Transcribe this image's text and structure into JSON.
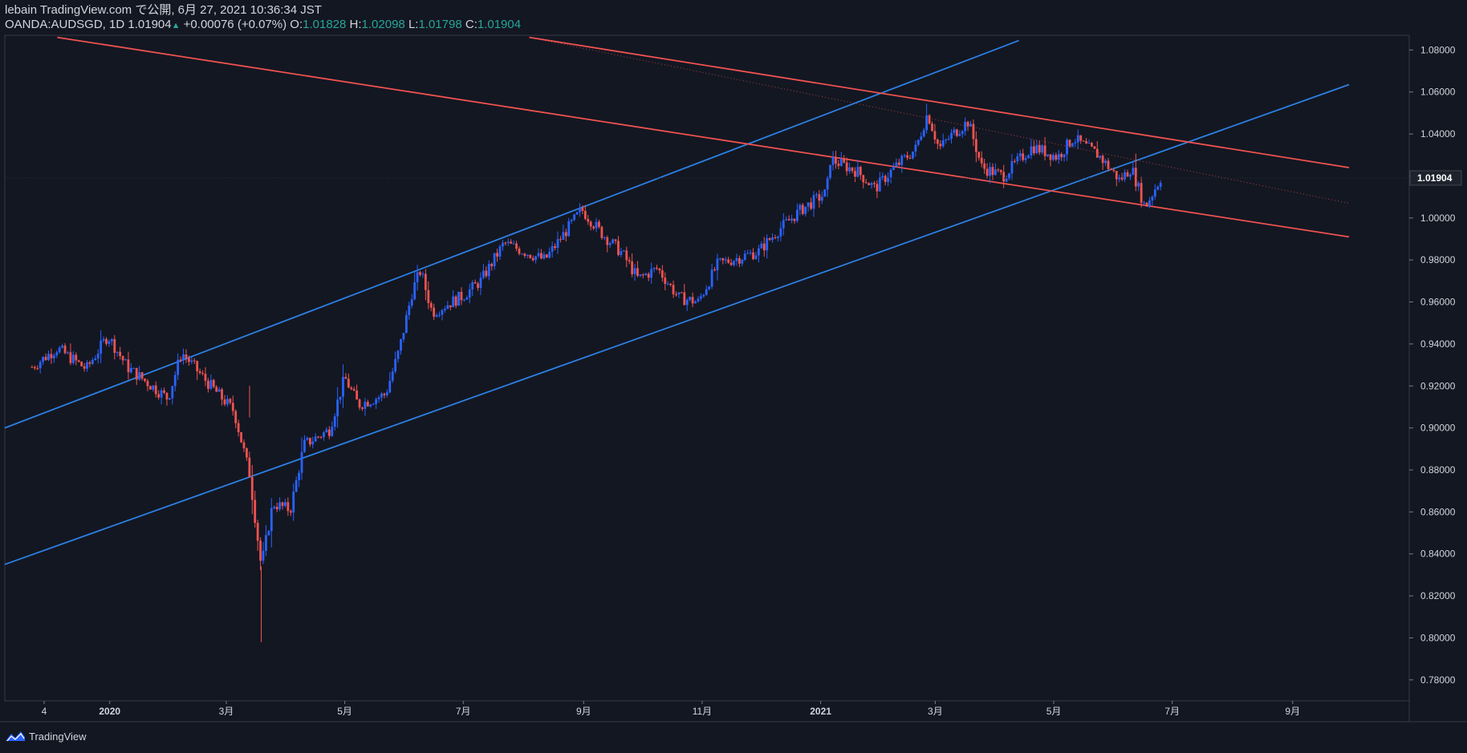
{
  "header": {
    "line1": "lebain TradingView.com で公開, 6月 27, 2021 10:36:34 JST",
    "symbol": "OANDA:AUDSGD, 1D",
    "last": "1.01904",
    "change": "+0.00076 (+0.07%)",
    "o_label": "O:",
    "o_value": "1.01828",
    "h_label": "H:",
    "h_value": "1.02098",
    "l_label": "L:",
    "l_value": "1.01798",
    "c_label": "C:",
    "c_value": "1.01904"
  },
  "footer": {
    "brand": "TradingView"
  },
  "colors": {
    "background": "#131722",
    "up": "#2962ff",
    "down": "#ef5350",
    "blue_line": "#2d7fe3",
    "red_line": "#f0524f",
    "text": "#d1d4dc",
    "accent": "#26a69a"
  },
  "chart_data": {
    "type": "candlestick",
    "symbol": "OANDA:AUDSGD",
    "interval": "1D",
    "ylim": [
      0.77,
      1.087
    ],
    "y_ticks": [
      "1.08000",
      "1.06000",
      "1.04000",
      "1.02000",
      "1.00000",
      "0.98000",
      "0.96000",
      "0.94000",
      "0.92000",
      "0.90000",
      "0.88000",
      "0.86000",
      "0.84000",
      "0.82000",
      "0.80000",
      "0.78000"
    ],
    "last_price_label": "1.01904",
    "x_ticks": [
      "4",
      "2020",
      "3月",
      "5月",
      "7月",
      "9月",
      "11月",
      "2021",
      "3月",
      "5月",
      "7月",
      "9月"
    ],
    "close_path": [
      {
        "date": "2019-11-22",
        "close": 0.929
      },
      {
        "date": "2019-12-05",
        "close": 0.938
      },
      {
        "date": "2019-12-20",
        "close": 0.928
      },
      {
        "date": "2019-12-31",
        "close": 0.944
      },
      {
        "date": "2020-01-10",
        "close": 0.929
      },
      {
        "date": "2020-01-31",
        "close": 0.914
      },
      {
        "date": "2020-02-07",
        "close": 0.936
      },
      {
        "date": "2020-02-20",
        "close": 0.922
      },
      {
        "date": "2020-03-05",
        "close": 0.908
      },
      {
        "date": "2020-03-13",
        "close": 0.878
      },
      {
        "date": "2020-03-19",
        "close": 0.834
      },
      {
        "date": "2020-03-25",
        "close": 0.864
      },
      {
        "date": "2020-04-03",
        "close": 0.861
      },
      {
        "date": "2020-04-10",
        "close": 0.892
      },
      {
        "date": "2020-04-23",
        "close": 0.899
      },
      {
        "date": "2020-05-01",
        "close": 0.924
      },
      {
        "date": "2020-05-08",
        "close": 0.911
      },
      {
        "date": "2020-05-22",
        "close": 0.916
      },
      {
        "date": "2020-05-29",
        "close": 0.937
      },
      {
        "date": "2020-06-05",
        "close": 0.966
      },
      {
        "date": "2020-06-09",
        "close": 0.975
      },
      {
        "date": "2020-06-15",
        "close": 0.955
      },
      {
        "date": "2020-07-01",
        "close": 0.963
      },
      {
        "date": "2020-07-10",
        "close": 0.97
      },
      {
        "date": "2020-07-22",
        "close": 0.988
      },
      {
        "date": "2020-08-12",
        "close": 0.98
      },
      {
        "date": "2020-08-31",
        "close": 1.004
      },
      {
        "date": "2020-09-10",
        "close": 0.993
      },
      {
        "date": "2020-09-21",
        "close": 0.983
      },
      {
        "date": "2020-09-29",
        "close": 0.971
      },
      {
        "date": "2020-10-09",
        "close": 0.976
      },
      {
        "date": "2020-10-20",
        "close": 0.962
      },
      {
        "date": "2020-10-30",
        "close": 0.96
      },
      {
        "date": "2020-11-09",
        "close": 0.978
      },
      {
        "date": "2020-11-30",
        "close": 0.984
      },
      {
        "date": "2020-12-10",
        "close": 0.994
      },
      {
        "date": "2020-12-22",
        "close": 1.004
      },
      {
        "date": "2021-01-04",
        "close": 1.012
      },
      {
        "date": "2021-01-06",
        "close": 1.028
      },
      {
        "date": "2021-01-20",
        "close": 1.022
      },
      {
        "date": "2021-01-29",
        "close": 1.014
      },
      {
        "date": "2021-02-08",
        "close": 1.024
      },
      {
        "date": "2021-02-19",
        "close": 1.033
      },
      {
        "date": "2021-02-25",
        "close": 1.05
      },
      {
        "date": "2021-03-03",
        "close": 1.033
      },
      {
        "date": "2021-03-10",
        "close": 1.04
      },
      {
        "date": "2021-03-18",
        "close": 1.046
      },
      {
        "date": "2021-03-25",
        "close": 1.024
      },
      {
        "date": "2021-04-05",
        "close": 1.02
      },
      {
        "date": "2021-04-20",
        "close": 1.034
      },
      {
        "date": "2021-05-03",
        "close": 1.029
      },
      {
        "date": "2021-05-11",
        "close": 1.038
      },
      {
        "date": "2021-05-24",
        "close": 1.03
      },
      {
        "date": "2021-06-04",
        "close": 1.018
      },
      {
        "date": "2021-06-10",
        "close": 1.024
      },
      {
        "date": "2021-06-17",
        "close": 1.005
      },
      {
        "date": "2021-06-25",
        "close": 1.019
      }
    ],
    "trendlines": [
      {
        "color": "blue",
        "from": {
          "date": "2019-11-08",
          "price": 0.9
        },
        "to": {
          "date": "2021-04-13",
          "price": 1.0845
        }
      },
      {
        "color": "blue",
        "from": {
          "date": "2019-11-08",
          "price": 0.835
        },
        "to": {
          "date": "2021-09-30",
          "price": 1.0635
        }
      },
      {
        "color": "red",
        "from": {
          "date": "2019-12-05",
          "price": 1.086
        },
        "to": {
          "date": "2021-09-30",
          "price": 0.991
        }
      },
      {
        "color": "red",
        "from": {
          "date": "2020-08-04",
          "price": 1.086
        },
        "to": {
          "date": "2021-09-30",
          "price": 1.024
        }
      },
      {
        "color": "red_dotted",
        "from": {
          "date": "2020-08-04",
          "price": 1.086
        },
        "to": {
          "date": "2021-09-30",
          "price": 1.007
        }
      }
    ]
  }
}
